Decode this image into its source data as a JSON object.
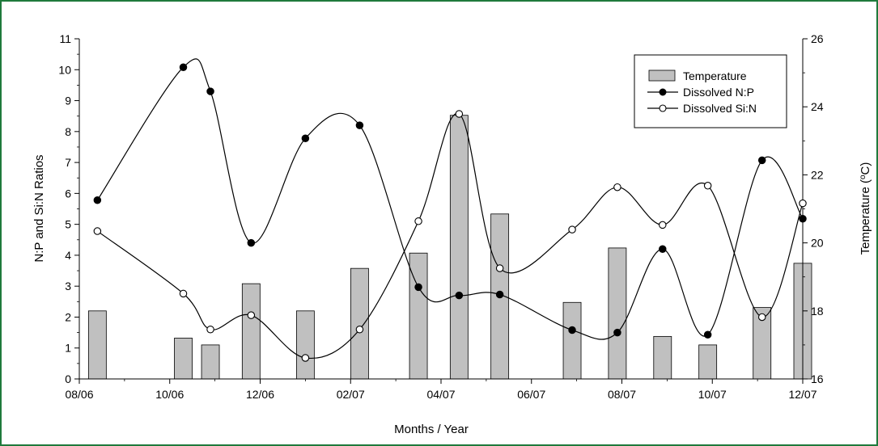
{
  "chart_data": {
    "type": "bar+line",
    "xlabel": "Months / Year",
    "ylabel_left": "N:P and Si:N Ratios",
    "ylabel_right_prefix": "Temperature (",
    "ylabel_right_sup": "o",
    "ylabel_right_suffix": "C)",
    "x_ticks": [
      "08/06",
      "10/06",
      "12/06",
      "02/07",
      "04/07",
      "06/07",
      "08/07",
      "10/07",
      "12/07"
    ],
    "x_tick_months": [
      0,
      2,
      4,
      6,
      8,
      10,
      12,
      14,
      16
    ],
    "xlim_months": [
      0,
      16
    ],
    "ylim_left": [
      0,
      11
    ],
    "y_left_ticks": [
      "0",
      "1",
      "2",
      "3",
      "4",
      "5",
      "6",
      "7",
      "8",
      "9",
      "10",
      "11"
    ],
    "ylim_right": [
      16,
      26
    ],
    "y_right_ticks": [
      "16",
      "18",
      "20",
      "22",
      "24",
      "26"
    ],
    "legend_placement": "top-right",
    "series": [
      {
        "name": "Temperature",
        "kind": "bar",
        "color": "#c0c0c0",
        "x_months": [
          0.4,
          2.3,
          2.9,
          3.8,
          5.0,
          6.2,
          7.5,
          8.4,
          9.3,
          10.9,
          11.9,
          12.9,
          13.9,
          15.1,
          16.0
        ],
        "values": [
          18.0,
          17.2,
          17.0,
          18.8,
          18.0,
          19.25,
          19.7,
          23.75,
          20.85,
          18.25,
          19.85,
          17.25,
          17.0,
          18.1,
          19.4
        ]
      },
      {
        "name": "Dissolved N:P",
        "kind": "line",
        "marker": "filled-circle",
        "x_months": [
          0.4,
          2.3,
          2.9,
          3.8,
          5.0,
          6.2,
          7.5,
          8.4,
          9.3,
          10.9,
          11.9,
          12.9,
          13.9,
          15.1,
          16.0
        ],
        "values": [
          5.78,
          10.08,
          9.3,
          4.4,
          7.78,
          8.2,
          2.97,
          2.7,
          2.73,
          1.58,
          1.5,
          4.2,
          1.43,
          7.07,
          5.18
        ]
      },
      {
        "name": "Dissolved Si:N",
        "kind": "line",
        "marker": "open-circle",
        "x_months": [
          0.4,
          2.3,
          2.9,
          3.8,
          5.0,
          6.2,
          7.5,
          8.4,
          9.3,
          10.9,
          11.9,
          12.9,
          13.9,
          15.1,
          16.0
        ],
        "values": [
          4.78,
          2.76,
          1.6,
          2.06,
          0.68,
          1.6,
          5.1,
          8.57,
          3.58,
          4.83,
          6.2,
          4.98,
          6.25,
          2.0,
          5.68
        ]
      }
    ]
  }
}
